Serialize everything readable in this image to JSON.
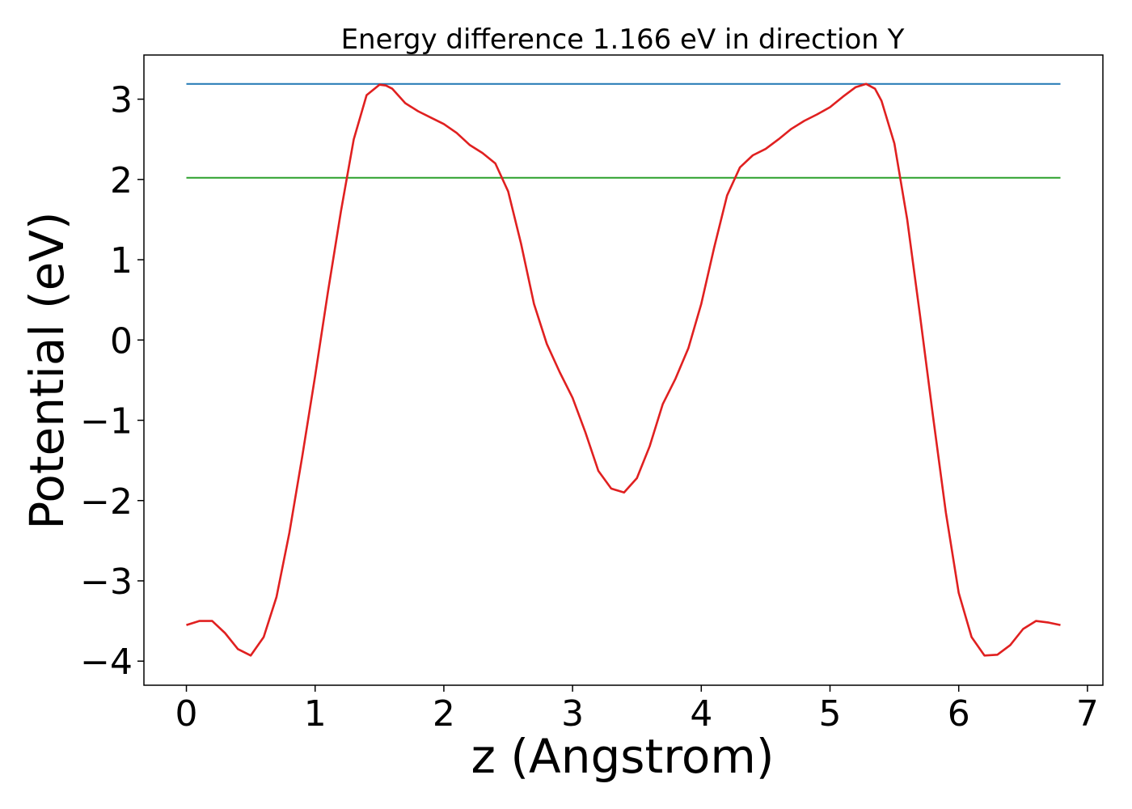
{
  "chart_data": {
    "type": "line",
    "title": "Energy difference 1.166 eV in direction Y",
    "xlabel": "z (Angstrom)",
    "ylabel": "Potential (eV)",
    "xlim": [
      -0.33,
      7.12
    ],
    "ylim": [
      -4.3,
      3.55
    ],
    "xticks": [
      0,
      1,
      2,
      3,
      4,
      5,
      6,
      7
    ],
    "xtick_labels": [
      "0",
      "1",
      "2",
      "3",
      "4",
      "5",
      "6",
      "7"
    ],
    "yticks": [
      3,
      2,
      1,
      0,
      -1,
      -2,
      -3,
      -4
    ],
    "ytick_labels": [
      "3",
      "2",
      "1",
      "0",
      "−1",
      "−2",
      "−3",
      "−4"
    ],
    "grid": false,
    "series": [
      {
        "color": "#1f77b4",
        "x": [
          0,
          6.79
        ],
        "y": [
          3.19,
          3.19
        ]
      },
      {
        "color": "#2ca02c",
        "x": [
          0,
          6.79
        ],
        "y": [
          2.02,
          2.02
        ]
      },
      {
        "color": "#e02020",
        "x": [
          0.0,
          0.1,
          0.2,
          0.3,
          0.4,
          0.5,
          0.6,
          0.7,
          0.8,
          0.9,
          1.0,
          1.1,
          1.2,
          1.3,
          1.4,
          1.5,
          1.55,
          1.6,
          1.7,
          1.8,
          1.9,
          2.0,
          2.1,
          2.2,
          2.3,
          2.4,
          2.5,
          2.6,
          2.7,
          2.8,
          2.9,
          3.0,
          3.1,
          3.2,
          3.3,
          3.4,
          3.5,
          3.6,
          3.7,
          3.8,
          3.9,
          4.0,
          4.1,
          4.2,
          4.3,
          4.4,
          4.5,
          4.6,
          4.7,
          4.8,
          4.9,
          5.0,
          5.1,
          5.2,
          5.28,
          5.35,
          5.4,
          5.5,
          5.6,
          5.7,
          5.8,
          5.9,
          6.0,
          6.1,
          6.2,
          6.3,
          6.4,
          6.5,
          6.6,
          6.7,
          6.79
        ],
        "y": [
          -3.55,
          -3.5,
          -3.5,
          -3.65,
          -3.85,
          -3.93,
          -3.7,
          -3.2,
          -2.4,
          -1.45,
          -0.45,
          0.6,
          1.6,
          2.5,
          3.05,
          3.18,
          3.17,
          3.13,
          2.95,
          2.85,
          2.77,
          2.69,
          2.58,
          2.43,
          2.33,
          2.2,
          1.85,
          1.2,
          0.45,
          -0.05,
          -0.4,
          -0.72,
          -1.15,
          -1.63,
          -1.85,
          -1.9,
          -1.72,
          -1.32,
          -0.8,
          -0.48,
          -0.1,
          0.45,
          1.15,
          1.8,
          2.15,
          2.3,
          2.38,
          2.5,
          2.63,
          2.73,
          2.81,
          2.9,
          3.03,
          3.15,
          3.19,
          3.13,
          2.98,
          2.45,
          1.5,
          0.3,
          -0.95,
          -2.15,
          -3.15,
          -3.7,
          -3.93,
          -3.92,
          -3.8,
          -3.6,
          -3.5,
          -3.52,
          -3.55
        ]
      }
    ]
  }
}
